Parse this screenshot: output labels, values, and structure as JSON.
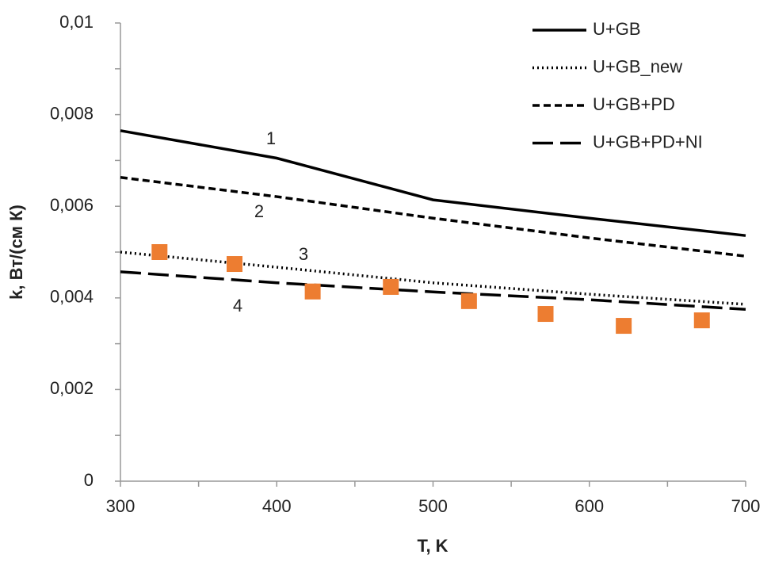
{
  "chart_data": {
    "type": "line",
    "x_label": "T, K",
    "y_label": "k, Вт/(см К)",
    "xlim": [
      300,
      700
    ],
    "xticks": [
      300,
      400,
      500,
      600,
      700
    ],
    "xminorticks": [
      350,
      450,
      550,
      650
    ],
    "ylim": [
      0,
      0.01
    ],
    "yticks": [
      0,
      {
        "value": 0.002,
        "label": "0,002"
      },
      {
        "value": 0.004,
        "label": "0,004"
      },
      {
        "value": 0.006,
        "label": "0,006"
      },
      {
        "value": 0.008,
        "label": "0,008"
      },
      {
        "value": 0.01,
        "label": "0,01"
      }
    ],
    "yminorticks": [
      0.001,
      0.003,
      0.005,
      0.007,
      0.009
    ],
    "legend": "top-right",
    "series": [
      {
        "name": "U+GB",
        "type": "line",
        "style": "solid",
        "color": "#000000",
        "x": [
          300,
          400,
          500,
          600,
          700
        ],
        "values": [
          0.00765,
          0.00705,
          0.00614,
          0.00574,
          0.00536
        ]
      },
      {
        "name": "U+GB_new",
        "type": "line",
        "style": "dotted",
        "color": "#000000",
        "x": [
          300,
          400,
          500,
          600,
          700
        ],
        "values": [
          0.005,
          0.00467,
          0.00433,
          0.00408,
          0.00386
        ]
      },
      {
        "name": "U+GB+PD",
        "type": "line",
        "style": "dashed",
        "color": "#000000",
        "x": [
          300,
          400,
          500,
          600,
          700
        ],
        "values": [
          0.00663,
          0.00621,
          0.00574,
          0.00531,
          0.00491
        ]
      },
      {
        "name": "U+GB+PD+NI",
        "type": "line",
        "style": "longdash",
        "color": "#000000",
        "x": [
          300,
          400,
          500,
          600,
          700
        ],
        "values": [
          0.00457,
          0.00433,
          0.00413,
          0.00396,
          0.00375
        ]
      },
      {
        "type": "scatter",
        "color": "#ed7d31",
        "x": [
          325,
          373,
          423,
          473,
          523,
          572,
          622,
          672
        ],
        "values": [
          0.005,
          0.00474,
          0.00414,
          0.00424,
          0.00393,
          0.00365,
          0.00339,
          0.00351
        ]
      }
    ],
    "annotations": [
      "1",
      "2",
      "3",
      "4"
    ]
  }
}
